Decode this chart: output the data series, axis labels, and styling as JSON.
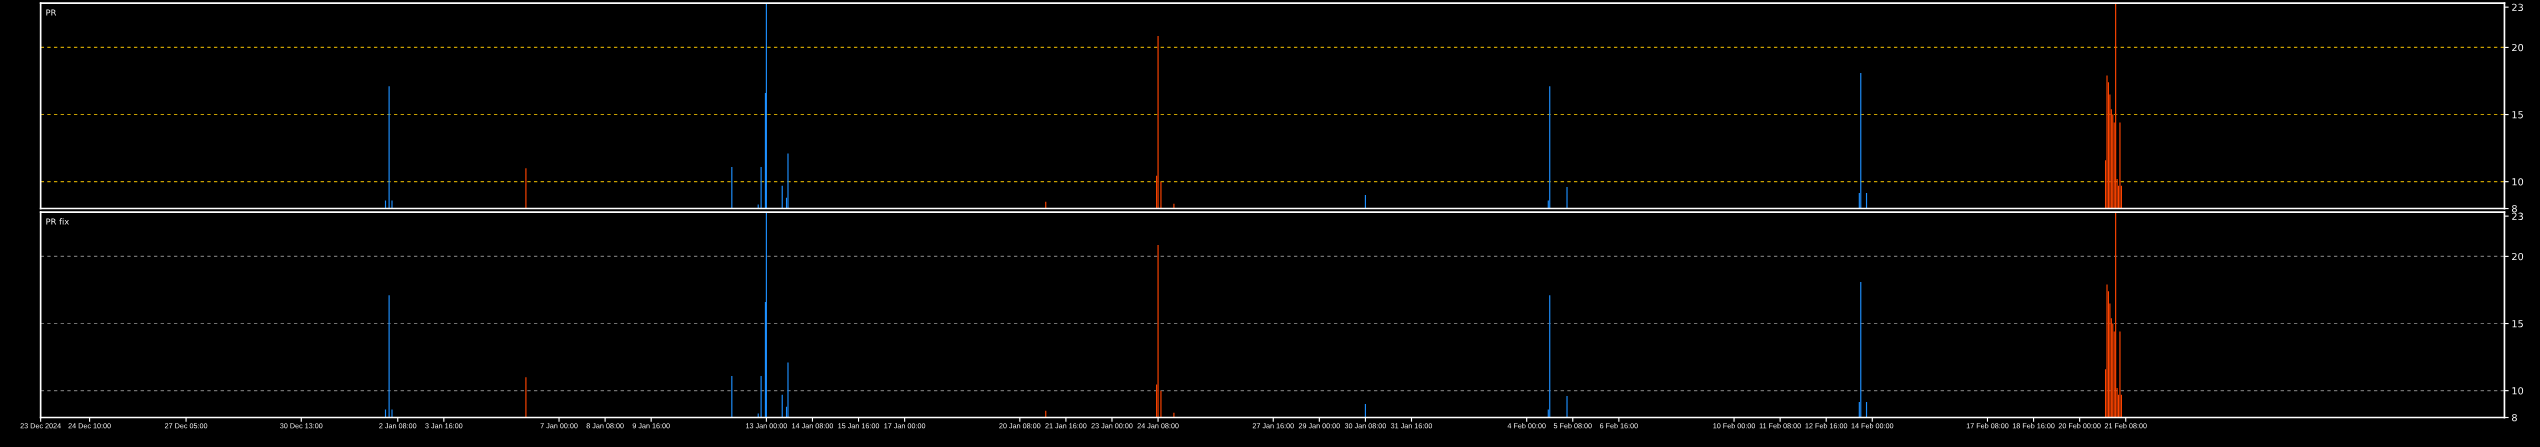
{
  "chart_data": [
    {
      "type": "bar",
      "title": "PR",
      "tick_labels": "y",
      "grid": "y",
      "xlim": [
        "2024-12-23",
        "2025-03-04T07:00"
      ],
      "ylim": [
        8,
        23.3
      ],
      "yticks": [
        8,
        10,
        15,
        20,
        23
      ],
      "series": [
        {
          "color": "#1e90ff",
          "x": [
            "2025-01-01T23:30",
            "2025-01-02T02:00",
            "2025-01-02T04:00",
            "2025-01-12T00:00",
            "2025-01-12T18:20",
            "2025-01-12T20:20",
            "2025-01-12T23:20",
            "2025-01-13T00:00",
            "2025-01-13T11:00",
            "2025-01-13T14:00",
            "2025-01-13T15:00",
            "2025-01-30T08:00",
            "2025-02-04T15:00",
            "2025-02-04T16:00",
            "2025-02-05T04:00",
            "2025-02-13T15:00",
            "2025-02-13T16:00",
            "2025-02-13T20:00"
          ],
          "values": [
            8.6,
            17.1,
            8.6,
            11.1,
            8.3,
            11.1,
            16.6,
            23.3,
            9.7,
            8.8,
            12.1,
            9.0,
            8.6,
            17.1,
            9.6,
            9.15,
            18.1,
            9.15
          ]
        },
        {
          "color": "#ff4500",
          "x": [
            "2025-01-06T01:00",
            "2025-01-21T02:00",
            "2025-01-24T07:00",
            "2025-01-24T08:00",
            "2025-01-24T10:00",
            "2025-01-24T19:00",
            "2025-02-20T18:00",
            "2025-02-20T19:00",
            "2025-02-20T20:00",
            "2025-02-20T21:00",
            "2025-02-20T22:00",
            "2025-02-20T23:00",
            "2025-02-21T00:00",
            "2025-02-21T01:00",
            "2025-02-21T02:00",
            "2025-02-21T03:00",
            "2025-02-21T04:00",
            "2025-02-21T05:00"
          ],
          "values": [
            11.0,
            8.5,
            10.45,
            20.85,
            10.0,
            8.35,
            11.6,
            17.9,
            17.4,
            16.5,
            15.4,
            15.0,
            14.4,
            23.3,
            10.2,
            9.7,
            14.4,
            9.7
          ]
        }
      ]
    },
    {
      "type": "bar",
      "title": "PR fix",
      "grid": "y",
      "xlim": [
        "2024-12-23",
        "2025-03-04T07:00"
      ],
      "ylim": [
        8,
        23.3
      ],
      "yticks": [
        8,
        10,
        15,
        20,
        23
      ],
      "xticks": [
        {
          "value": "2024-12-23",
          "label": "23 Dec 2024"
        },
        {
          "value": "2024-12-24T10:00",
          "label": "24 Dec 10:00"
        },
        {
          "value": "2024-12-27T05:00",
          "label": "27 Dec 05:00"
        },
        {
          "value": "2024-12-30T13:00",
          "label": "30 Dec 13:00"
        },
        {
          "value": "2025-01-02T08:00",
          "label": "2 Jan 08:00"
        },
        {
          "value": "2025-01-03T16:00",
          "label": "3 Jan 16:00"
        },
        {
          "value": "2025-01-07T00:00",
          "label": "7 Jan 00:00"
        },
        {
          "value": "2025-01-08T08:00",
          "label": "8 Jan 08:00"
        },
        {
          "value": "2025-01-09T16:00",
          "label": "9 Jan 16:00"
        },
        {
          "value": "2025-01-13T00:00",
          "label": "13 Jan 00:00"
        },
        {
          "value": "2025-01-14T08:00",
          "label": "14 Jan 08:00"
        },
        {
          "value": "2025-01-15T16:00",
          "label": "15 Jan 16:00"
        },
        {
          "value": "2025-01-17T00:00",
          "label": "17 Jan 00:00"
        },
        {
          "value": "2025-01-20T08:00",
          "label": "20 Jan 08:00"
        },
        {
          "value": "2025-01-21T16:00",
          "label": "21 Jan 16:00"
        },
        {
          "value": "2025-01-23T00:00",
          "label": "23 Jan 00:00"
        },
        {
          "value": "2025-01-24T08:00",
          "label": "24 Jan 08:00"
        },
        {
          "value": "2025-01-27T16:00",
          "label": "27 Jan 16:00"
        },
        {
          "value": "2025-01-29T00:00",
          "label": "29 Jan 00:00"
        },
        {
          "value": "2025-01-30T08:00",
          "label": "30 Jan 08:00"
        },
        {
          "value": "2025-01-31T16:00",
          "label": "31 Jan 16:00"
        },
        {
          "value": "2025-02-04T00:00",
          "label": "4 Feb 00:00"
        },
        {
          "value": "2025-02-05T08:00",
          "label": "5 Feb 08:00"
        },
        {
          "value": "2025-02-06T16:00",
          "label": "6 Feb 16:00"
        },
        {
          "value": "2025-02-10T00:00",
          "label": "10 Feb 00:00"
        },
        {
          "value": "2025-02-11T08:00",
          "label": "11 Feb 08:00"
        },
        {
          "value": "2025-02-12T16:00",
          "label": "12 Feb 16:00"
        },
        {
          "value": "2025-02-14T00:00",
          "label": "14 Feb 00:00"
        },
        {
          "value": "2025-02-17T08:00",
          "label": "17 Feb 08:00"
        },
        {
          "value": "2025-02-18T16:00",
          "label": "18 Feb 16:00"
        },
        {
          "value": "2025-02-20T00:00",
          "label": "20 Feb 00:00"
        },
        {
          "value": "2025-02-21T08:00",
          "label": "21 Feb 08:00"
        }
      ],
      "series": [
        {
          "color": "#1e90ff",
          "x": [
            "2025-01-01T23:30",
            "2025-01-02T02:00",
            "2025-01-02T04:00",
            "2025-01-12T00:00",
            "2025-01-12T18:20",
            "2025-01-12T20:20",
            "2025-01-12T23:20",
            "2025-01-13T00:00",
            "2025-01-13T11:00",
            "2025-01-13T14:00",
            "2025-01-13T15:00",
            "2025-01-30T08:00",
            "2025-02-04T15:00",
            "2025-02-04T16:00",
            "2025-02-05T04:00",
            "2025-02-13T15:00",
            "2025-02-13T16:00",
            "2025-02-13T20:00"
          ],
          "values": [
            8.6,
            17.1,
            8.6,
            11.1,
            8.3,
            11.1,
            16.6,
            23.3,
            9.7,
            8.8,
            12.1,
            9.0,
            8.6,
            17.1,
            9.6,
            9.15,
            18.1,
            9.15
          ]
        },
        {
          "color": "#ff4500",
          "x": [
            "2025-01-06T01:00",
            "2025-01-21T02:00",
            "2025-01-24T07:00",
            "2025-01-24T08:00",
            "2025-01-24T10:00",
            "2025-01-24T19:00",
            "2025-02-20T18:00",
            "2025-02-20T19:00",
            "2025-02-20T20:00",
            "2025-02-20T21:00",
            "2025-02-20T22:00",
            "2025-02-20T23:00",
            "2025-02-21T00:00",
            "2025-02-21T01:00",
            "2025-02-21T02:00",
            "2025-02-21T03:00",
            "2025-02-21T04:00",
            "2025-02-21T05:00"
          ],
          "values": [
            11.0,
            8.5,
            10.45,
            20.85,
            10.0,
            8.35,
            11.6,
            17.9,
            17.4,
            16.5,
            15.4,
            15.0,
            14.4,
            23.3,
            10.2,
            9.7,
            14.4,
            9.7
          ]
        }
      ]
    }
  ]
}
